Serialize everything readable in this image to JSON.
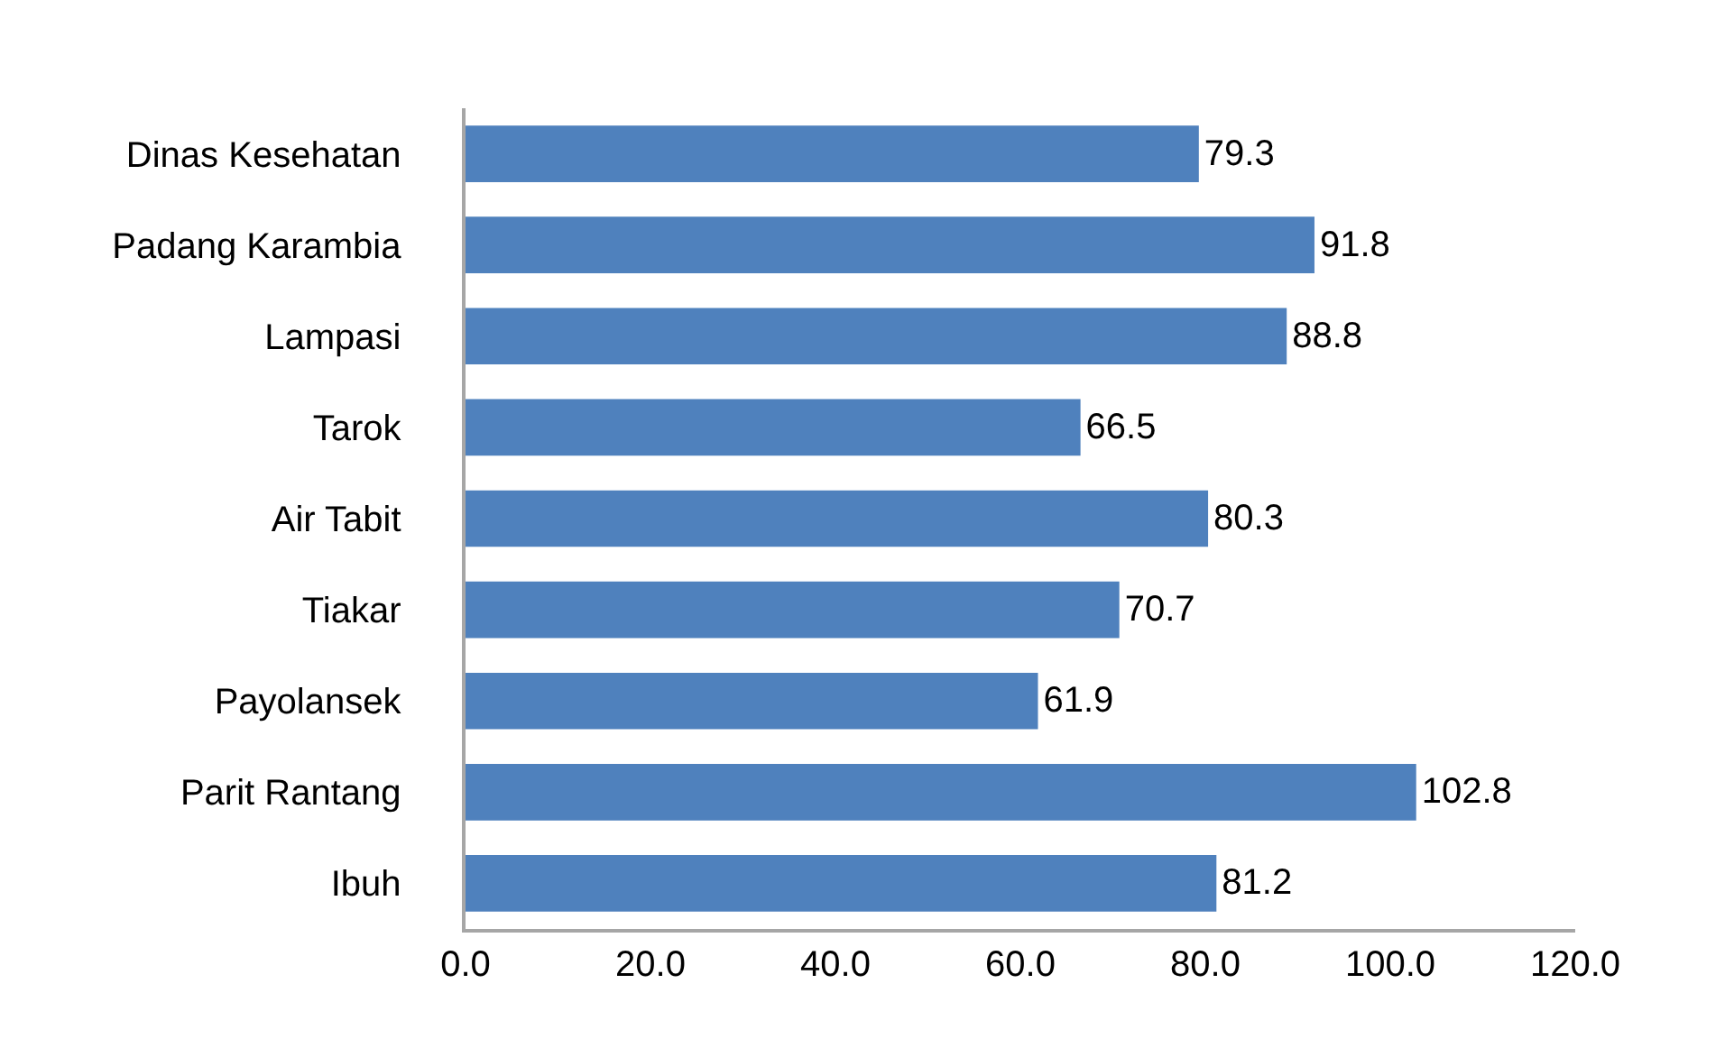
{
  "chart_data": {
    "type": "bar",
    "orientation": "horizontal",
    "categories": [
      "Dinas Kesehatan",
      "Padang Karambia",
      "Lampasi",
      "Tarok",
      "Air Tabit",
      "Tiakar",
      "Payolansek",
      "Parit Rantang",
      "Ibuh"
    ],
    "values": [
      79.3,
      91.8,
      88.8,
      66.5,
      80.3,
      70.7,
      61.9,
      102.8,
      81.2
    ],
    "color": "#4f81bd",
    "xlim": [
      0,
      120
    ],
    "xticks": [
      {
        "value": 0,
        "label": "0.0"
      },
      {
        "value": 20,
        "label": "20.0"
      },
      {
        "value": 40,
        "label": "40.0"
      },
      {
        "value": 60,
        "label": "60.0"
      },
      {
        "value": 80,
        "label": "80.0"
      },
      {
        "value": 100,
        "label": "100.0"
      },
      {
        "value": 120,
        "label": "120.0"
      }
    ],
    "data_labels": true
  }
}
